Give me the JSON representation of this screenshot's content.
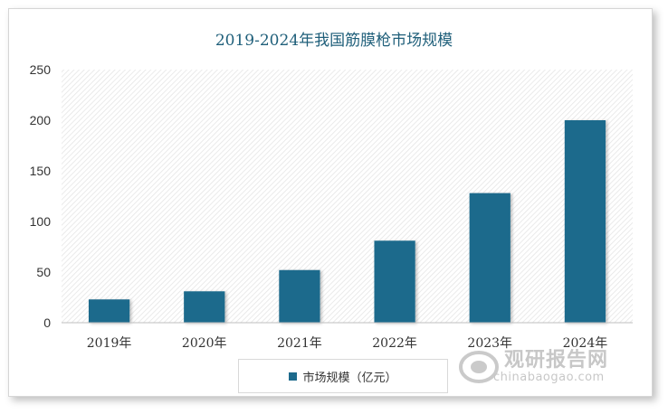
{
  "chart_data": {
    "type": "bar",
    "title": "2019-2024年我国筋膜枪市场规模",
    "categories": [
      "2019年",
      "2020年",
      "2021年",
      "2022年",
      "2023年",
      "2024年"
    ],
    "series": [
      {
        "name": "市场规模（亿元）",
        "values": [
          23,
          31,
          52,
          81,
          128,
          200
        ]
      }
    ],
    "ylim": [
      0,
      250
    ],
    "yticks": [
      0,
      50,
      100,
      150,
      200,
      250
    ],
    "grid": false,
    "legend": "bottom",
    "bar_color": "#1d6a8c"
  },
  "watermark": {
    "text_cn": "观研报告网",
    "text_en": "chinabaogao.com"
  }
}
